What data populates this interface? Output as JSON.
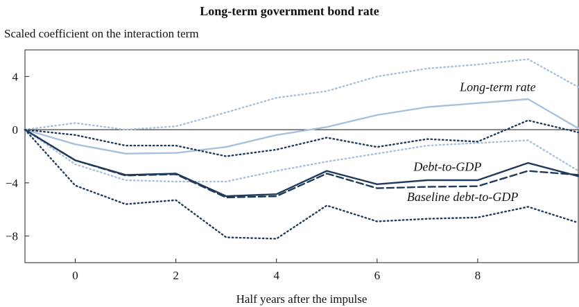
{
  "chart_data": {
    "type": "line",
    "title": "Long-term government bond rate",
    "subtitle": "Scaled coefficient on the interaction term",
    "xlabel": "Half years after the impulse",
    "ylabel": "",
    "xlim": [
      -1,
      10
    ],
    "ylim": [
      -10,
      6
    ],
    "xticks": [
      0,
      2,
      4,
      6,
      8
    ],
    "yticks": [
      4,
      0,
      -4,
      -8
    ],
    "ytick_labels": [
      "4",
      "0",
      "−4",
      "−8"
    ],
    "zero_line": true,
    "grid": false,
    "x": [
      -1,
      0,
      1,
      2,
      3,
      4,
      5,
      6,
      7,
      8,
      9,
      10
    ],
    "series": [
      {
        "name": "Long-term rate",
        "style": "solid",
        "color": "#a9c0dc",
        "values": [
          0,
          -1.1,
          -1.8,
          -1.75,
          -1.3,
          -0.4,
          0.2,
          1.1,
          1.7,
          2.0,
          2.3,
          0.1
        ]
      },
      {
        "name": "",
        "style": "dotted",
        "color": "#a9c0dc",
        "values": [
          0,
          0.5,
          0.0,
          0.25,
          1.3,
          2.4,
          2.9,
          4.0,
          4.6,
          4.9,
          5.3,
          3.2
        ]
      },
      {
        "name": "",
        "style": "dotted",
        "color": "#a9c0dc",
        "values": [
          0,
          -2.6,
          -3.8,
          -3.9,
          -3.9,
          -3.1,
          -2.4,
          -1.8,
          -1.2,
          -1.0,
          -0.8,
          -3.1
        ]
      },
      {
        "name": "Debt-to-GDP",
        "style": "solid",
        "color": "#1f3a5a",
        "values": [
          0,
          -2.3,
          -3.4,
          -3.3,
          -5.0,
          -4.85,
          -3.1,
          -4.1,
          -3.8,
          -3.8,
          -2.5,
          -3.5
        ]
      },
      {
        "name": "Baseline debt-to-GDP",
        "style": "dashed",
        "color": "#1f3a5a",
        "values": [
          0,
          -2.3,
          -3.45,
          -3.35,
          -5.1,
          -5.0,
          -3.3,
          -4.4,
          -4.3,
          -4.25,
          -3.1,
          -3.4
        ]
      },
      {
        "name": "",
        "style": "dotted",
        "color": "#1f3a5a",
        "values": [
          0,
          -0.4,
          -1.2,
          -1.2,
          -2.0,
          -1.5,
          -0.6,
          -1.3,
          -0.7,
          -0.9,
          0.7,
          -0.2
        ]
      },
      {
        "name": "",
        "style": "dotted",
        "color": "#1f3a5a",
        "values": [
          0,
          -4.2,
          -5.6,
          -5.3,
          -8.1,
          -8.2,
          -5.7,
          -6.9,
          -6.7,
          -6.6,
          -5.8,
          -7.0
        ]
      }
    ],
    "annotations": [
      {
        "text": "Long-term rate",
        "x": 8.4,
        "y": 2.9
      },
      {
        "text": "Debt-to-GDP",
        "x": 7.4,
        "y": -3.1
      },
      {
        "text": "Baseline debt-to-GDP",
        "x": 7.7,
        "y": -5.35
      }
    ]
  }
}
